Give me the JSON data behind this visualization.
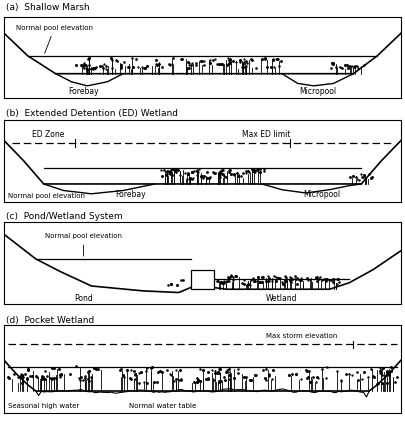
{
  "title_a": "(a)  Shallow Marsh",
  "title_b": "(b)  Extended Detention (ED) Wetland",
  "title_c": "(c)  Pond/Wetland System",
  "title_d": "(d)  Pocket Wetland",
  "bg_color": "#ffffff",
  "line_color": "#000000"
}
